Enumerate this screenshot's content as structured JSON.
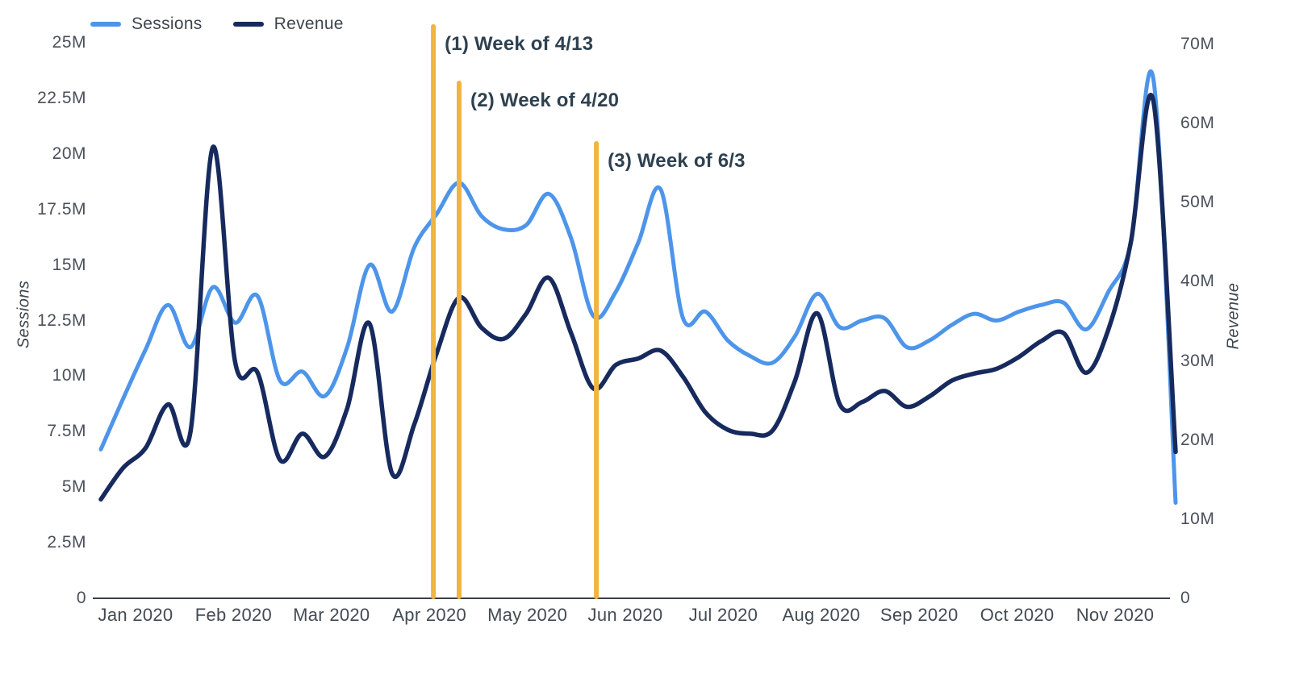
{
  "chart_data": {
    "type": "line",
    "title": "",
    "x_unit": "week",
    "x_tick_labels": [
      "Jan 2020",
      "Feb 2020",
      "Mar 2020",
      "Apr 2020",
      "May 2020",
      "Jun 2020",
      "Jul 2020",
      "Aug 2020",
      "Sep 2020",
      "Oct 2020",
      "Nov 2020"
    ],
    "left_axis": {
      "label": "Sessions",
      "tick_labels": [
        "25M",
        "22.5M",
        "20M",
        "17.5M",
        "15M",
        "12.5M",
        "10M",
        "7.5M",
        "5M",
        "2.5M",
        "0"
      ],
      "tick_values": [
        25,
        22.5,
        20,
        17.5,
        15,
        12.5,
        10,
        7.5,
        5,
        2.5,
        0
      ],
      "max": 25,
      "unit": "millions"
    },
    "right_axis": {
      "label": "Revenue",
      "tick_labels": [
        "70M",
        "60M",
        "50M",
        "40M",
        "30M",
        "20M",
        "10M",
        "0"
      ],
      "tick_values": [
        70,
        60,
        50,
        40,
        30,
        20,
        10,
        0
      ],
      "max": 70,
      "unit": "millions"
    },
    "series": [
      {
        "name": "Sessions",
        "axis": "left",
        "color": "#4d95ea",
        "stroke_width": 5,
        "values_millions": [
          6.7,
          9.0,
          11.2,
          13.2,
          11.3,
          14.0,
          12.4,
          13.6,
          9.8,
          10.2,
          9.1,
          11.3,
          15.0,
          12.9,
          15.8,
          17.3,
          18.7,
          17.2,
          16.6,
          16.8,
          18.2,
          16.2,
          12.7,
          13.8,
          16.0,
          18.4,
          12.6,
          12.9,
          11.6,
          10.9,
          10.6,
          11.8,
          13.7,
          12.2,
          12.5,
          12.6,
          11.3,
          11.6,
          12.3,
          12.8,
          12.5,
          12.9,
          13.2,
          13.3,
          12.1,
          13.8,
          16.0,
          23.4,
          4.3
        ]
      },
      {
        "name": "Revenue",
        "axis": "right",
        "color": "#172a5e",
        "stroke_width": 5.5,
        "values_millions": [
          12.5,
          16.5,
          19.0,
          24.5,
          21.0,
          57.0,
          29.8,
          28.5,
          17.5,
          20.8,
          17.9,
          24.0,
          34.7,
          15.8,
          22.0,
          31.0,
          38.0,
          34.2,
          32.8,
          36.0,
          40.5,
          33.5,
          26.5,
          29.5,
          30.3,
          31.3,
          28.0,
          23.5,
          21.3,
          20.8,
          21.2,
          27.5,
          36.0,
          24.5,
          24.8,
          26.2,
          24.2,
          25.5,
          27.5,
          28.4,
          29.0,
          30.5,
          32.5,
          33.5,
          28.5,
          34.0,
          45.0,
          62.9,
          18.5
        ]
      }
    ],
    "annotations": [
      {
        "label": "(1) Week of 4/13",
        "week_index": 14.85,
        "line_top_y": 30
      },
      {
        "label": "(2) Week of 4/20",
        "week_index": 16.0,
        "line_top_y": 100
      },
      {
        "label": "(3) Week of 6/3",
        "week_index": 22.13,
        "line_top_y": 175
      }
    ],
    "annotation_color": "#f0b441",
    "axis_line_color": "#3a4049",
    "legend": {
      "position": "top-left",
      "items": [
        "Sessions",
        "Revenue"
      ]
    },
    "grid": false
  }
}
